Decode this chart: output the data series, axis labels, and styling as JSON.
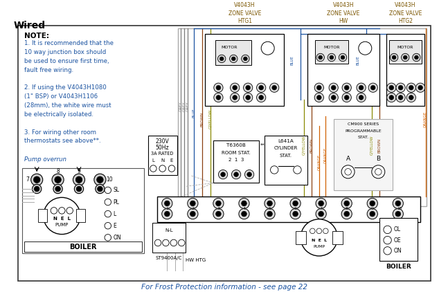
{
  "title": "Wired",
  "bg": "#ffffff",
  "border_color": "#444444",
  "note_lines": [
    "NOTE:",
    "1. It is recommended that the",
    "10 way junction box should",
    "be used to ensure first time,",
    "fault free wiring.",
    " ",
    "2. If using the V4043H1080",
    "(1\" BSP) or V4043H1106",
    "(28mm), the white wire must",
    "be electrically isolated.",
    " ",
    "3. For wiring other room",
    "thermostats see above**."
  ],
  "footer": "For Frost Protection information - see page 22",
  "grey": "#7a7a7a",
  "blue": "#1a52a0",
  "brown": "#8B4010",
  "gyellow": "#888800",
  "orange": "#d06000",
  "black": "#000000",
  "mid_grey": "#aaaaaa",
  "zv_label_color": "#7a5500",
  "note_text_color": "#1a52a0",
  "pump_overrun_color": "#1a52a0",
  "footer_color": "#1a52a0"
}
